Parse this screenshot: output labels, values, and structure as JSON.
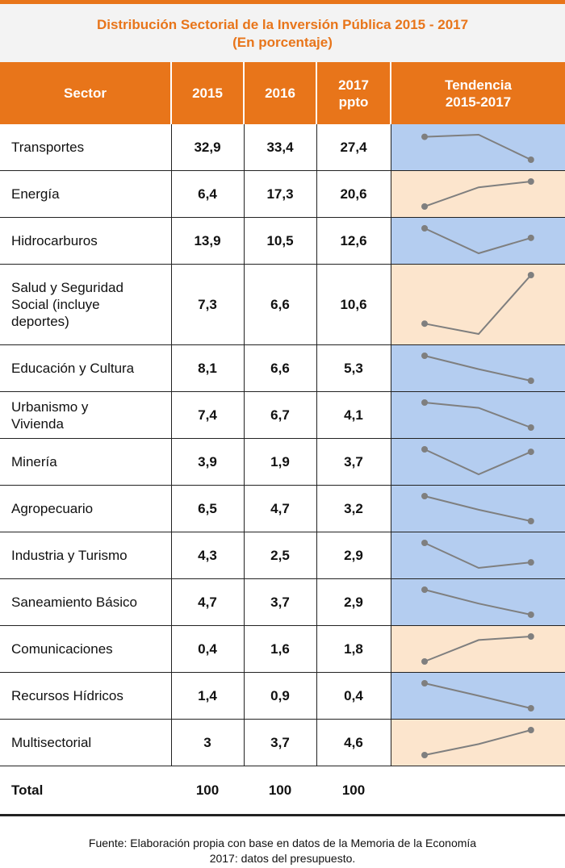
{
  "chart_data": {
    "type": "table",
    "title": "Distribución Sectorial de la Inversión Pública 2015 - 2017",
    "subtitle": "(En porcentaje)",
    "columns": [
      "Sector",
      "2015",
      "2016",
      "2017 ppto",
      "Tendencia 2015-2017"
    ],
    "column_lines": {
      "ppto": [
        "2017",
        "ppto"
      ],
      "trend": [
        "Tendencia",
        "2015-2017"
      ]
    },
    "rows": [
      {
        "sector": "Transportes",
        "values": [
          32.9,
          33.4,
          27.4
        ],
        "labels": [
          "32,9",
          "33,4",
          "27,4"
        ]
      },
      {
        "sector": "Energía",
        "values": [
          6.4,
          17.3,
          20.6
        ],
        "labels": [
          "6,4",
          "17,3",
          "20,6"
        ]
      },
      {
        "sector": "Hidrocarburos",
        "values": [
          13.9,
          10.5,
          12.6
        ],
        "labels": [
          "13,9",
          "10,5",
          "12,6"
        ]
      },
      {
        "sector": "Salud y Seguridad Social (incluye deportes)",
        "sector_lines": [
          "Salud y Seguridad",
          "Social (incluye",
          "deportes)"
        ],
        "values": [
          7.3,
          6.6,
          10.6
        ],
        "labels": [
          "7,3",
          "6,6",
          "10,6"
        ]
      },
      {
        "sector": "Educación y Cultura",
        "values": [
          8.1,
          6.6,
          5.3
        ],
        "labels": [
          "8,1",
          "6,6",
          "5,3"
        ]
      },
      {
        "sector": "Urbanismo y Vivienda",
        "sector_lines": [
          "Urbanismo y",
          "Vivienda"
        ],
        "values": [
          7.4,
          6.7,
          4.1
        ],
        "labels": [
          "7,4",
          "6,7",
          "4,1"
        ]
      },
      {
        "sector": "Minería",
        "values": [
          3.9,
          1.9,
          3.7
        ],
        "labels": [
          "3,9",
          "1,9",
          "3,7"
        ]
      },
      {
        "sector": "Agropecuario",
        "values": [
          6.5,
          4.7,
          3.2
        ],
        "labels": [
          "6,5",
          "4,7",
          "3,2"
        ]
      },
      {
        "sector": "Industria y Turismo",
        "values": [
          4.3,
          2.5,
          2.9
        ],
        "labels": [
          "4,3",
          "2,5",
          "2,9"
        ]
      },
      {
        "sector": "Saneamiento Básico",
        "values": [
          4.7,
          3.7,
          2.9
        ],
        "labels": [
          "4,7",
          "3,7",
          "2,9"
        ]
      },
      {
        "sector": "Comunicaciones",
        "values": [
          0.4,
          1.6,
          1.8
        ],
        "labels": [
          "0,4",
          "1,6",
          "1,8"
        ]
      },
      {
        "sector": "Recursos Hídricos",
        "values": [
          1.4,
          0.9,
          0.4
        ],
        "labels": [
          "1,4",
          "0,9",
          "0,4"
        ]
      },
      {
        "sector": "Multisectorial",
        "values": [
          3,
          3.7,
          4.6
        ],
        "labels": [
          "3",
          "3,7",
          "4,6"
        ]
      }
    ],
    "total": {
      "label": "Total",
      "labels": [
        "100",
        "100",
        "100"
      ]
    },
    "source": "Fuente: Elaboración propia con base en datos de la Memoria de la Economía 2017: datos del presupuesto.",
    "source_lines": [
      "Fuente: Elaboración propia con base en datos de la Memoria de la Economía",
      "2017: datos del presupuesto."
    ]
  },
  "colors": {
    "accent": "#e8751a",
    "trend_up": "#fce5cd",
    "trend_down": "#b4cdf0",
    "trend_flat": "#ffffff",
    "sparkline": "#7f7f7f"
  }
}
